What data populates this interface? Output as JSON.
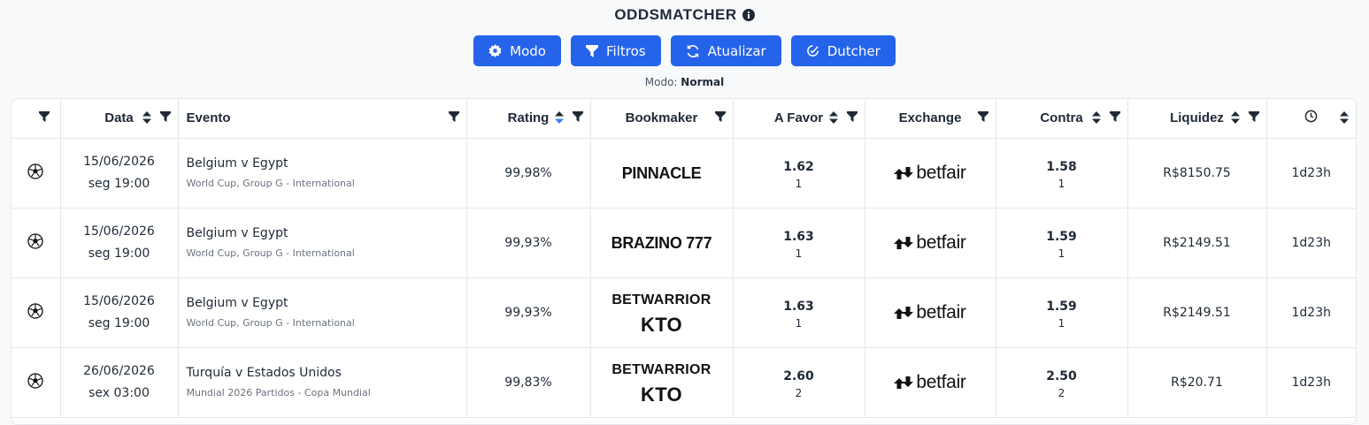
{
  "header": {
    "title": "ODDSMATCHER",
    "buttons": [
      "Modo",
      "Filtros",
      "Atualizar",
      "Dutcher"
    ],
    "mode_label": "Modo:",
    "mode_value": "Normal"
  },
  "table": {
    "columns": [
      "Data",
      "Evento",
      "Rating",
      "Bookmaker",
      "A Favor",
      "Exchange",
      "Contra",
      "Liquidez"
    ],
    "rows": [
      {
        "date": "15/06/2026",
        "time": "seg 19:00",
        "event": "Belgium v Egypt",
        "competition": "World Cup, Group G - International",
        "rating": "99,98%",
        "bookmaker": [
          "PINNACLE"
        ],
        "back_odds": "1.62",
        "back_stake": "1",
        "exchange": "betfair",
        "lay_odds": "1.58",
        "lay_stake": "1",
        "liquidity": "R$8150.75",
        "time_left": "1d23h"
      },
      {
        "date": "15/06/2026",
        "time": "seg 19:00",
        "event": "Belgium v Egypt",
        "competition": "World Cup, Group G - International",
        "rating": "99,93%",
        "bookmaker": [
          "BRAZINO 777"
        ],
        "back_odds": "1.63",
        "back_stake": "1",
        "exchange": "betfair",
        "lay_odds": "1.59",
        "lay_stake": "1",
        "liquidity": "R$2149.51",
        "time_left": "1d23h"
      },
      {
        "date": "15/06/2026",
        "time": "seg 19:00",
        "event": "Belgium v Egypt",
        "competition": "World Cup, Group G - International",
        "rating": "99,93%",
        "bookmaker": [
          "BETWARRIOR",
          "KTO"
        ],
        "back_odds": "1.63",
        "back_stake": "1",
        "exchange": "betfair",
        "lay_odds": "1.59",
        "lay_stake": "1",
        "liquidity": "R$2149.51",
        "time_left": "1d23h"
      },
      {
        "date": "26/06/2026",
        "time": "sex 03:00",
        "event": "Turquía v Estados Unidos",
        "competition": "Mundial 2026 Partidos - Copa Mundial",
        "rating": "99,83%",
        "bookmaker": [
          "BETWARRIOR",
          "KTO"
        ],
        "back_odds": "2.60",
        "back_stake": "2",
        "exchange": "betfair",
        "lay_odds": "2.50",
        "lay_stake": "2",
        "liquidity": "R$20.71",
        "time_left": "1d23h"
      }
    ]
  }
}
